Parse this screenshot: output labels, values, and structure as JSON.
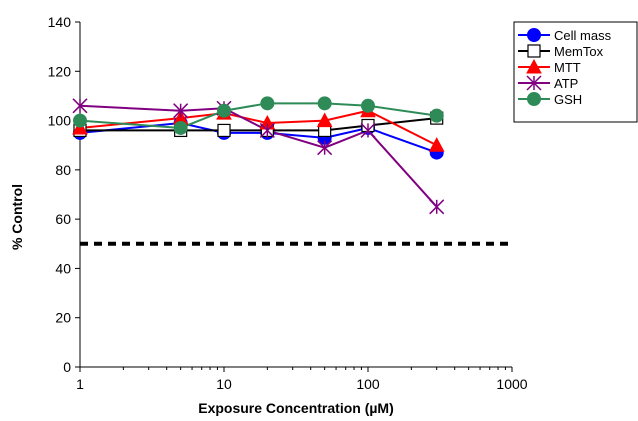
{
  "chart_data": {
    "type": "line",
    "title": "",
    "xlabel": "Exposure Concentration (µM)",
    "ylabel": "% Control",
    "x_scale": "log",
    "xlim": [
      1,
      1000
    ],
    "ylim": [
      0,
      140
    ],
    "x_ticks": [
      "1",
      "10",
      "100",
      "1000"
    ],
    "y_ticks": [
      "0",
      "20",
      "40",
      "60",
      "80",
      "100",
      "120",
      "140"
    ],
    "grid": false,
    "legend_position": "top-right",
    "reference_line": {
      "y": 50,
      "style": "dashed",
      "color": "#000000"
    },
    "x": [
      1,
      5,
      10,
      20,
      50,
      100,
      300
    ],
    "series": [
      {
        "name": "Cell mass",
        "values": [
          95,
          99,
          95,
          95,
          93,
          97,
          87
        ],
        "color": "#0000ff",
        "marker": "circle-filled"
      },
      {
        "name": "MemTox",
        "values": [
          96,
          96,
          96,
          96,
          96,
          98,
          101
        ],
        "color": "#000000",
        "marker": "square-open"
      },
      {
        "name": "MTT",
        "values": [
          97,
          101,
          103,
          99,
          100,
          104,
          90
        ],
        "color": "#ff0000",
        "marker": "triangle-filled"
      },
      {
        "name": "ATP",
        "values": [
          106,
          104,
          105,
          96,
          89,
          96,
          65
        ],
        "color": "#800080",
        "marker": "asterisk"
      },
      {
        "name": "GSH",
        "values": [
          100,
          97,
          104,
          107,
          107,
          106,
          102
        ],
        "color": "#2e8b57",
        "marker": "circle-filled"
      }
    ]
  }
}
